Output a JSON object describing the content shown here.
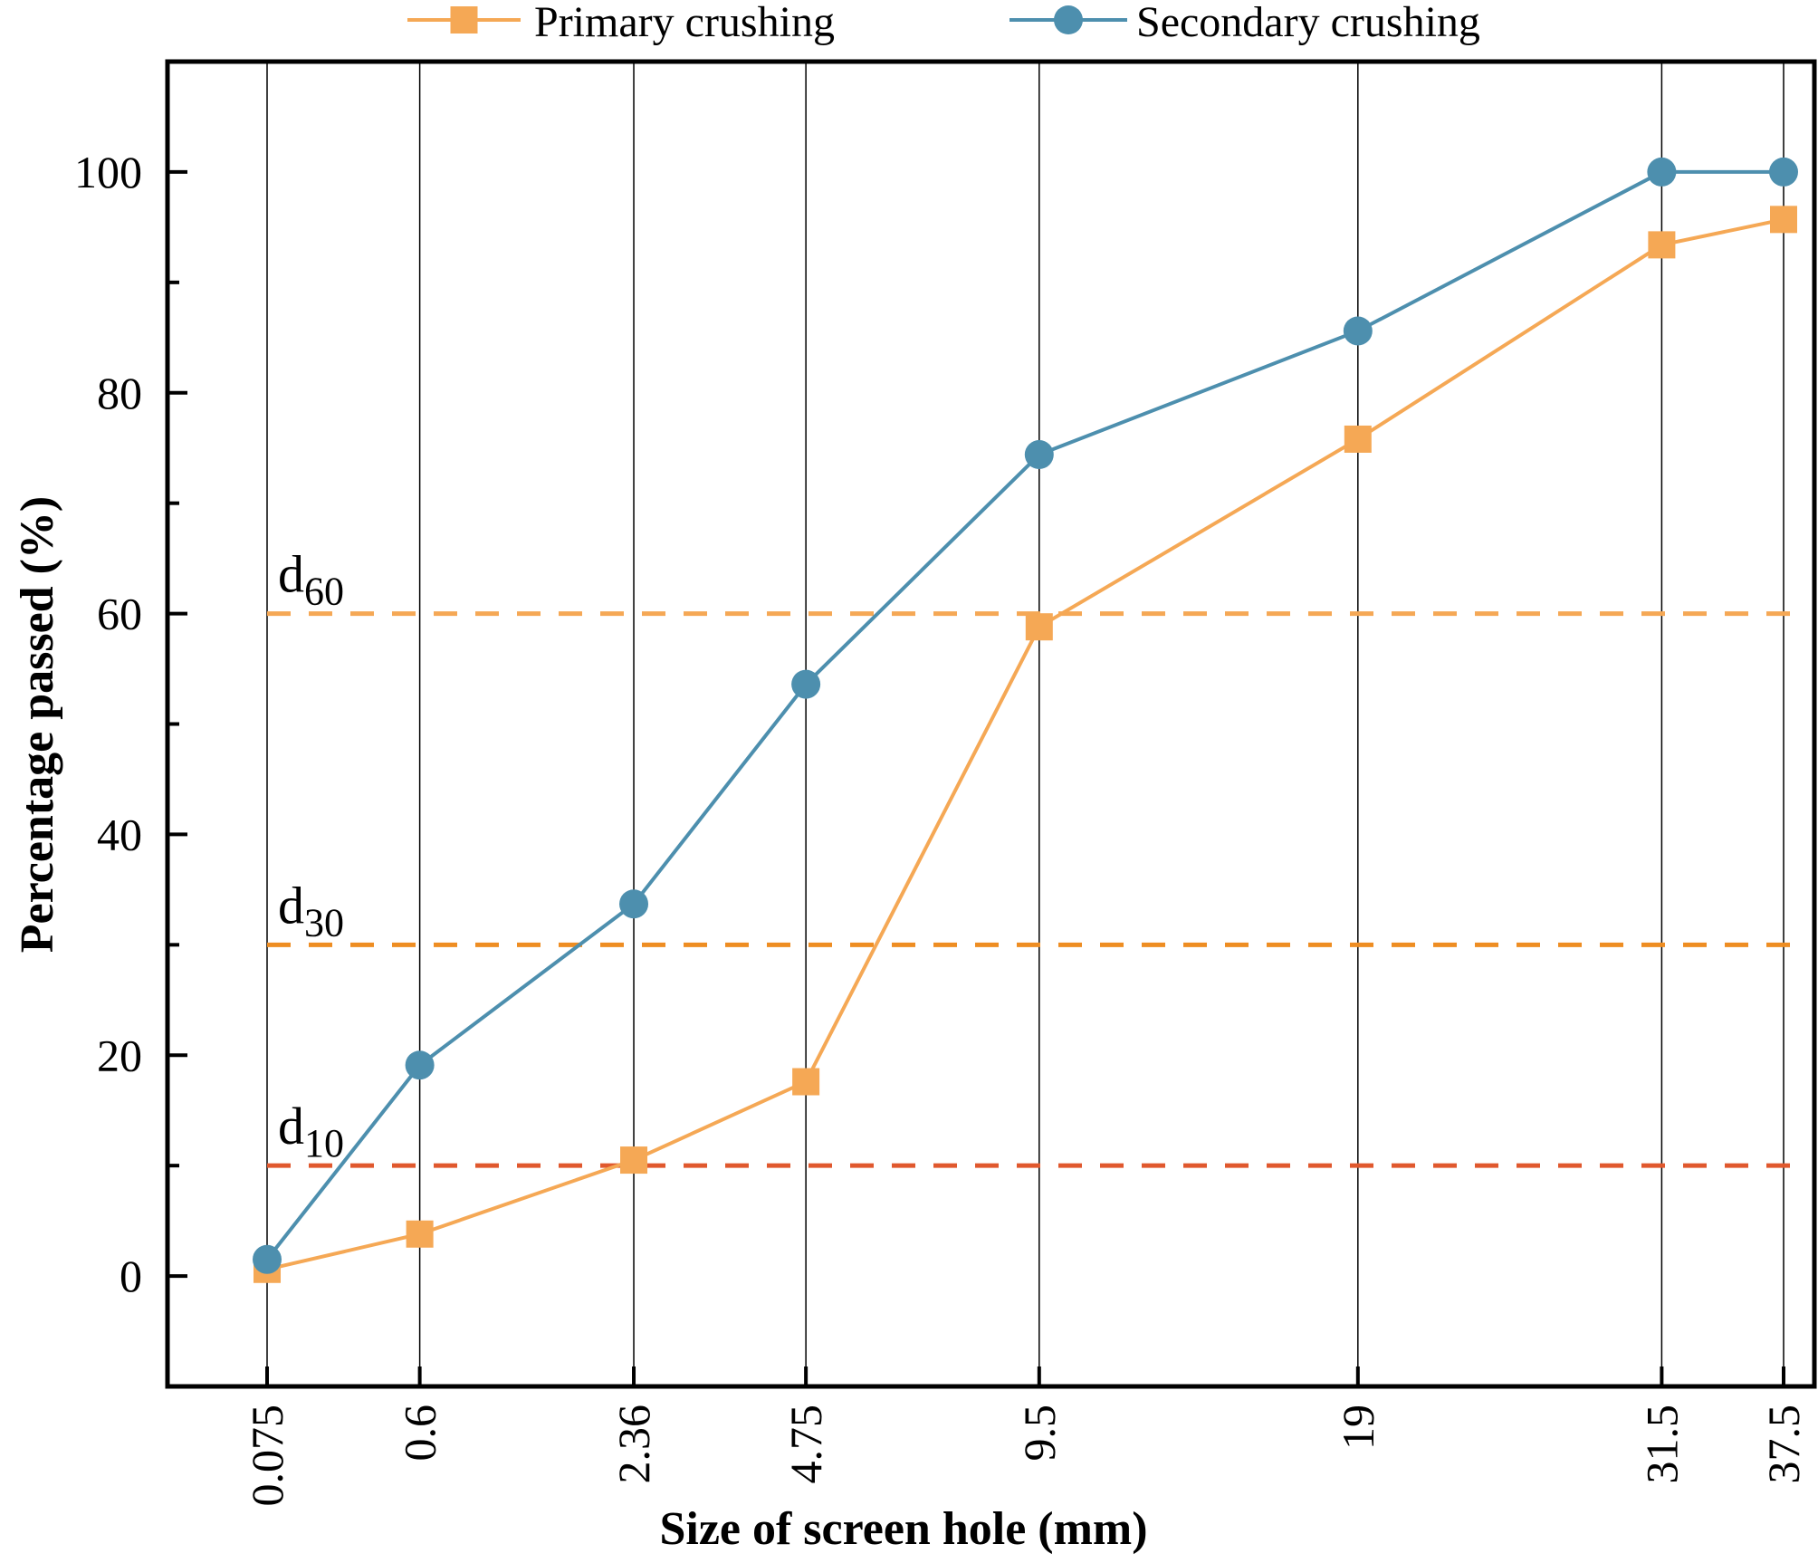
{
  "chart_data": {
    "type": "line",
    "title": "",
    "xlabel": "Size of screen hole (mm)",
    "ylabel": "Percentage passed (%)",
    "x_scale": "categorical-sieve",
    "categories": [
      "0.075",
      "0.6",
      "2.36",
      "4.75",
      "9.5",
      "19",
      "31.5",
      "37.5"
    ],
    "x_positions": [
      0.075,
      0.6,
      2.36,
      4.75,
      9.5,
      19,
      31.5,
      37.5
    ],
    "ylim": [
      -10,
      110
    ],
    "y_ticks": [
      0,
      20,
      40,
      60,
      80,
      100
    ],
    "y_tick_labels": [
      "0",
      "20",
      "40",
      "60",
      "80",
      "100"
    ],
    "grid": "vertical lines at each sieve size",
    "legend_position": "top-outside",
    "series": [
      {
        "name": "Primary crushing",
        "color": "#f5a855",
        "marker": "square",
        "values": [
          0.6,
          3.8,
          10.5,
          17.6,
          58.8,
          75.8,
          93.4,
          95.7
        ]
      },
      {
        "name": "Secondary crushing",
        "color": "#4d8fae",
        "marker": "circle",
        "values": [
          1.5,
          19.1,
          33.7,
          53.6,
          74.4,
          85.6,
          100,
          100
        ]
      }
    ],
    "reference_lines": [
      {
        "label_main": "d",
        "label_sub": "60",
        "y": 60,
        "color": "#f5a855"
      },
      {
        "label_main": "d",
        "label_sub": "30",
        "y": 30,
        "color": "#ee8d22"
      },
      {
        "label_main": "d",
        "label_sub": "10",
        "y": 10,
        "color": "#e0582d"
      }
    ]
  }
}
